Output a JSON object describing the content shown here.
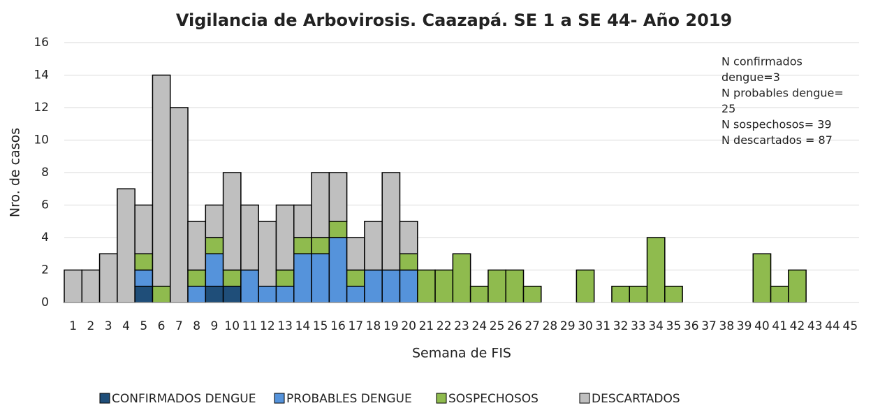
{
  "chart_data": {
    "type": "stacked_bar",
    "title": "Vigilancia de Arbovirosis. Caazapá. SE 1 a SE 44- Año 2019",
    "x_label": "Semana de FIS",
    "y_label": "Nro. de casos",
    "categories": [
      "1",
      "2",
      "3",
      "4",
      "5",
      "6",
      "7",
      "8",
      "9",
      "10",
      "11",
      "12",
      "13",
      "14",
      "15",
      "16",
      "17",
      "18",
      "19",
      "20",
      "21",
      "22",
      "23",
      "24",
      "25",
      "26",
      "27",
      "28",
      "29",
      "30",
      "31",
      "32",
      "33",
      "34",
      "35",
      "36",
      "37",
      "38",
      "39",
      "40",
      "41",
      "42",
      "43",
      "44",
      "45"
    ],
    "series": [
      {
        "name": "CONFIRMADOS DENGUE",
        "color": "#1f4e79",
        "values": [
          0,
          0,
          0,
          0,
          1,
          0,
          0,
          0,
          1,
          1,
          0,
          0,
          0,
          0,
          0,
          0,
          0,
          0,
          0,
          0,
          0,
          0,
          0,
          0,
          0,
          0,
          0,
          0,
          0,
          0,
          0,
          0,
          0,
          0,
          0,
          0,
          0,
          0,
          0,
          0,
          0,
          0,
          0,
          0,
          0
        ]
      },
      {
        "name": "PROBABLES DENGUE",
        "color": "#5593db",
        "values": [
          0,
          0,
          0,
          0,
          1,
          0,
          0,
          1,
          2,
          0,
          2,
          1,
          1,
          3,
          3,
          4,
          1,
          2,
          2,
          2,
          0,
          0,
          0,
          0,
          0,
          0,
          0,
          0,
          0,
          0,
          0,
          0,
          0,
          0,
          0,
          0,
          0,
          0,
          0,
          0,
          0,
          0,
          0,
          0,
          0
        ]
      },
      {
        "name": "SOSPECHOSOS",
        "color": "#8fbb4e",
        "values": [
          0,
          0,
          0,
          0,
          1,
          1,
          0,
          1,
          1,
          1,
          0,
          0,
          1,
          1,
          1,
          1,
          1,
          0,
          0,
          1,
          2,
          2,
          3,
          1,
          2,
          2,
          1,
          0,
          0,
          2,
          0,
          1,
          1,
          4,
          1,
          0,
          0,
          0,
          0,
          3,
          1,
          2,
          0,
          0,
          0
        ]
      },
      {
        "name": "DESCARTADOS",
        "color": "#bfbfbf",
        "values": [
          2,
          2,
          3,
          7,
          3,
          13,
          12,
          3,
          2,
          6,
          4,
          4,
          4,
          2,
          4,
          3,
          2,
          3,
          6,
          2,
          0,
          0,
          0,
          0,
          0,
          0,
          0,
          0,
          0,
          0,
          0,
          0,
          0,
          0,
          0,
          0,
          0,
          0,
          0,
          0,
          0,
          0,
          0,
          0,
          0
        ]
      }
    ],
    "annotation": [
      "N confirmados",
      "dengue=3",
      "N probables dengue=",
      "25",
      "N sospechosos=  39",
      "N descartados =  87"
    ],
    "ylim": [
      0,
      16
    ],
    "yticks": [
      0,
      2,
      4,
      6,
      8,
      10,
      12,
      14,
      16
    ],
    "grid": true,
    "legend": "bottom"
  }
}
